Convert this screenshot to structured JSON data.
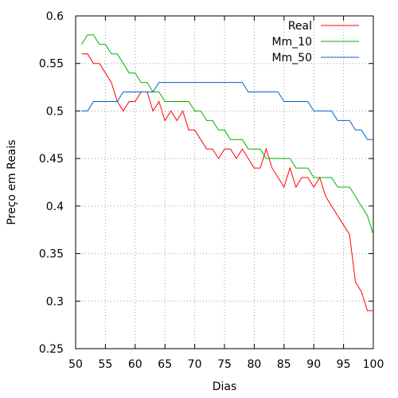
{
  "chart_data": {
    "type": "line",
    "title": "",
    "xlabel": "Dias",
    "ylabel": "Preço em Reais",
    "xlim": [
      50,
      100
    ],
    "ylim": [
      0.25,
      0.6
    ],
    "x_ticks": [
      "50",
      "55",
      "60",
      "65",
      "70",
      "75",
      "80",
      "85",
      "90",
      "95",
      "100"
    ],
    "y_ticks": [
      "0.25",
      "0.3",
      "0.35",
      "0.4",
      "0.45",
      "0.5",
      "0.55",
      "0.6"
    ],
    "x_tick_values": [
      50,
      55,
      60,
      65,
      70,
      75,
      80,
      85,
      90,
      95,
      100
    ],
    "y_tick_values": [
      0.25,
      0.3,
      0.35,
      0.4,
      0.45,
      0.5,
      0.55,
      0.6
    ],
    "grid": true,
    "legend_position": "top-right",
    "x": [
      51,
      52,
      53,
      54,
      55,
      56,
      57,
      58,
      59,
      60,
      61,
      62,
      63,
      64,
      65,
      66,
      67,
      68,
      69,
      70,
      71,
      72,
      73,
      74,
      75,
      76,
      77,
      78,
      79,
      80,
      81,
      82,
      83,
      84,
      85,
      86,
      87,
      88,
      89,
      90,
      91,
      92,
      93,
      94,
      95,
      96,
      97,
      98,
      99,
      100
    ],
    "series": [
      {
        "name": "Real",
        "color": "#ff0000",
        "values": [
          0.56,
          0.56,
          0.55,
          0.55,
          0.54,
          0.53,
          0.51,
          0.5,
          0.51,
          0.51,
          0.52,
          0.52,
          0.5,
          0.51,
          0.49,
          0.5,
          0.49,
          0.5,
          0.48,
          0.48,
          0.47,
          0.46,
          0.46,
          0.45,
          0.46,
          0.46,
          0.45,
          0.46,
          0.45,
          0.44,
          0.44,
          0.46,
          0.44,
          0.43,
          0.42,
          0.44,
          0.42,
          0.43,
          0.43,
          0.42,
          0.43,
          0.41,
          0.4,
          0.39,
          0.38,
          0.37,
          0.32,
          0.31,
          0.29,
          0.29
        ]
      },
      {
        "name": "Mm_10",
        "color": "#00b000",
        "values": [
          0.57,
          0.58,
          0.58,
          0.57,
          0.57,
          0.56,
          0.56,
          0.55,
          0.54,
          0.54,
          0.53,
          0.53,
          0.52,
          0.52,
          0.51,
          0.51,
          0.51,
          0.51,
          0.51,
          0.5,
          0.5,
          0.49,
          0.49,
          0.48,
          0.48,
          0.47,
          0.47,
          0.47,
          0.46,
          0.46,
          0.46,
          0.45,
          0.45,
          0.45,
          0.45,
          0.45,
          0.44,
          0.44,
          0.44,
          0.43,
          0.43,
          0.43,
          0.43,
          0.42,
          0.42,
          0.42,
          0.41,
          0.4,
          0.39,
          0.37
        ]
      },
      {
        "name": "Mm_50",
        "color": "#0060d0",
        "values": [
          0.5,
          0.5,
          0.51,
          0.51,
          0.51,
          0.51,
          0.51,
          0.52,
          0.52,
          0.52,
          0.52,
          0.52,
          0.52,
          0.53,
          0.53,
          0.53,
          0.53,
          0.53,
          0.53,
          0.53,
          0.53,
          0.53,
          0.53,
          0.53,
          0.53,
          0.53,
          0.53,
          0.53,
          0.52,
          0.52,
          0.52,
          0.52,
          0.52,
          0.52,
          0.51,
          0.51,
          0.51,
          0.51,
          0.51,
          0.5,
          0.5,
          0.5,
          0.5,
          0.49,
          0.49,
          0.49,
          0.48,
          0.48,
          0.47,
          0.47
        ]
      }
    ]
  }
}
